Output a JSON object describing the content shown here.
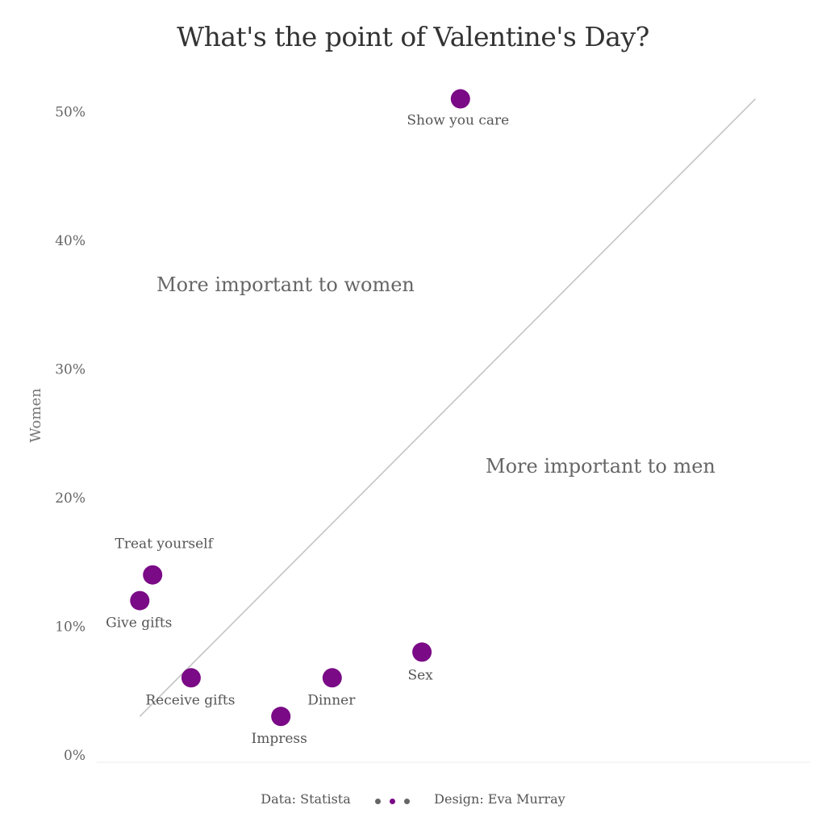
{
  "title": "What's the point of Valentine's Day?",
  "chart_data": {
    "type": "scatter",
    "title": "What's the point of Valentine's Day?",
    "xlabel": "",
    "ylabel": "Women",
    "ylim": [
      0,
      55
    ],
    "xlim": [
      0,
      55
    ],
    "y_ticks": [
      "0%",
      "10%",
      "20%",
      "30%",
      "40%",
      "50%"
    ],
    "y_tick_values": [
      0,
      10,
      20,
      30,
      40,
      50
    ],
    "points": [
      {
        "label": "Show you care",
        "x": 28,
        "y": 51
      },
      {
        "label": "Treat yourself",
        "x": 4,
        "y": 14
      },
      {
        "label": "Give gifts",
        "x": 3,
        "y": 12
      },
      {
        "label": "Receive gifts",
        "x": 7,
        "y": 6
      },
      {
        "label": "Impress",
        "x": 14,
        "y": 3
      },
      {
        "label": "Dinner",
        "x": 18,
        "y": 6
      },
      {
        "label": "Sex",
        "x": 25,
        "y": 8
      }
    ],
    "reference_line": {
      "type": "diagonal",
      "from": [
        3,
        3
      ],
      "to": [
        51,
        51
      ]
    },
    "annotations": [
      "More important to women",
      "More important to men"
    ],
    "grid": false
  },
  "colors": {
    "point": "#7a0a86",
    "diagonal": "#c4c4c4",
    "footer_dot_gray": "#666666"
  },
  "footer": {
    "source": "Data: Statista",
    "design": "Design: Eva Murray"
  }
}
